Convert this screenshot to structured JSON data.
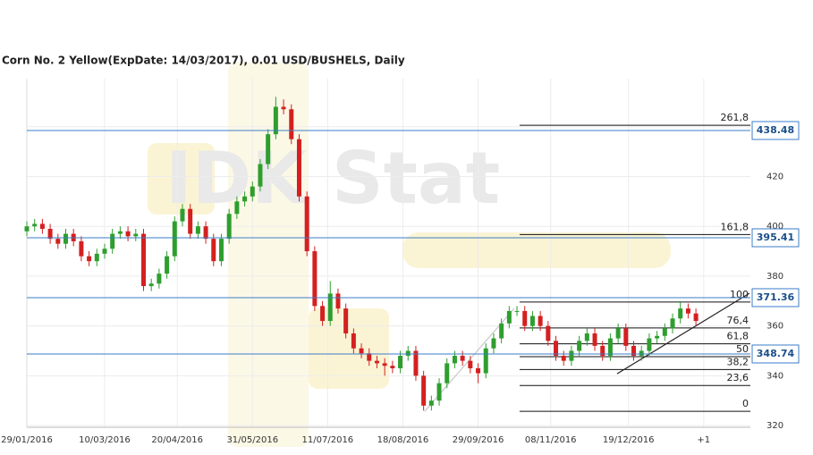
{
  "chart_data": {
    "type": "candlestick",
    "title": "Corn  No. 2 Yellow(ExpDate: 14/03/2017), 0.01 USD/BUSHELS, Daily",
    "watermark": "IDK Stat",
    "xlim": [
      0,
      279
    ],
    "xticks": [
      {
        "value": 0,
        "label": "29/01/2016"
      },
      {
        "value": 30,
        "label": "10/03/2016"
      },
      {
        "value": 58,
        "label": "20/04/2016"
      },
      {
        "value": 87,
        "label": "31/05/2016"
      },
      {
        "value": 116,
        "label": "11/07/2016"
      },
      {
        "value": 145,
        "label": "18/08/2016"
      },
      {
        "value": 174,
        "label": "29/09/2016"
      },
      {
        "value": 202,
        "label": "08/11/2016"
      },
      {
        "value": 232,
        "label": "19/12/2016"
      },
      {
        "value": 261,
        "label": "+1"
      }
    ],
    "ylim": [
      319.3,
      459.3
    ],
    "yticks": [
      320,
      340,
      360,
      380,
      400,
      420,
      440
    ],
    "grid": true,
    "up_color": "#2e9e2e",
    "down_color": "#d42020",
    "x": [
      0,
      3,
      6,
      9,
      12,
      15,
      18,
      21,
      24,
      27,
      30,
      33,
      36,
      39,
      42,
      45,
      48,
      51,
      54,
      57,
      60,
      63,
      66,
      69,
      72,
      75,
      78,
      81,
      84,
      87,
      90,
      93,
      96,
      99,
      102,
      105,
      108,
      111,
      114,
      117,
      120,
      123,
      126,
      129,
      132,
      135,
      138,
      141,
      144,
      147,
      150,
      153,
      156,
      159,
      162,
      165,
      168,
      171,
      174,
      177,
      180,
      183,
      186,
      189,
      192,
      195,
      198,
      201,
      204,
      207,
      210,
      213,
      216,
      219,
      222,
      225,
      228,
      231,
      234,
      237,
      240,
      243,
      246,
      249,
      252,
      255,
      258
    ],
    "open": [
      398,
      400,
      401,
      399,
      395,
      393,
      397,
      394,
      388,
      386,
      389,
      391,
      397,
      398,
      396,
      397,
      376,
      377,
      381,
      388,
      402,
      407,
      397,
      400,
      395,
      386,
      395,
      405,
      410,
      412,
      416,
      425,
      437,
      448,
      447,
      435,
      412,
      390,
      368,
      362,
      373,
      367,
      357,
      351,
      349,
      346,
      345,
      344,
      343,
      348,
      350,
      340,
      328,
      330,
      337,
      345,
      348,
      346,
      343,
      341,
      351,
      355,
      361,
      366,
      366,
      360,
      364,
      360,
      354,
      348,
      346,
      350,
      354,
      357,
      352,
      348,
      355,
      359,
      352,
      348,
      350,
      355,
      356,
      359,
      363,
      367,
      365
    ],
    "high": [
      402,
      403,
      403,
      401,
      397,
      399,
      399,
      396,
      390,
      391,
      393,
      399,
      400,
      400,
      399,
      399,
      379,
      383,
      390,
      404,
      409,
      409,
      402,
      402,
      397,
      397,
      407,
      412,
      414,
      418,
      427,
      439,
      452,
      451,
      449,
      437,
      414,
      392,
      370,
      378,
      375,
      369,
      359,
      353,
      351,
      348,
      347,
      346,
      350,
      352,
      352,
      342,
      332,
      339,
      347,
      350,
      350,
      348,
      345,
      353,
      357,
      363,
      368,
      368,
      368,
      366,
      366,
      362,
      356,
      350,
      352,
      356,
      359,
      359,
      354,
      357,
      361,
      361,
      354,
      352,
      357,
      358,
      361,
      365,
      370,
      369,
      367
    ],
    "low": [
      396,
      398,
      397,
      393,
      391,
      391,
      392,
      386,
      384,
      384,
      387,
      389,
      395,
      394,
      394,
      374,
      374,
      375,
      379,
      386,
      400,
      395,
      395,
      393,
      384,
      384,
      393,
      403,
      408,
      410,
      414,
      423,
      435,
      445,
      433,
      410,
      388,
      366,
      360,
      360,
      365,
      355,
      349,
      347,
      344,
      343,
      340,
      341,
      341,
      346,
      338,
      326,
      326,
      328,
      335,
      343,
      344,
      341,
      337,
      339,
      349,
      353,
      359,
      364,
      358,
      358,
      358,
      352,
      346,
      344,
      344,
      348,
      352,
      350,
      346,
      346,
      353,
      350,
      346,
      346,
      348,
      353,
      354,
      357,
      361,
      363,
      360
    ],
    "close": [
      400,
      401,
      399,
      395,
      393,
      397,
      394,
      388,
      386,
      389,
      391,
      397,
      398,
      396,
      397,
      376,
      377,
      381,
      388,
      402,
      407,
      397,
      400,
      395,
      386,
      395,
      405,
      410,
      412,
      416,
      425,
      437,
      448,
      447,
      435,
      412,
      390,
      368,
      362,
      373,
      367,
      357,
      351,
      349,
      346,
      345,
      344,
      343,
      348,
      350,
      340,
      328,
      330,
      337,
      345,
      348,
      346,
      343,
      341,
      351,
      355,
      361,
      366,
      366,
      360,
      364,
      360,
      354,
      348,
      346,
      350,
      354,
      357,
      352,
      348,
      355,
      359,
      352,
      348,
      350,
      355,
      356,
      359,
      363,
      367,
      365,
      362
    ],
    "levels": [
      438.48,
      395.41,
      371.36,
      348.74
    ],
    "level_color": "#3b7dc8",
    "fib_xlim": [
      190,
      279
    ],
    "fib_levels": [
      {
        "value": 440.6,
        "label": "261,8"
      },
      {
        "value": 396.7,
        "label": "161,8"
      },
      {
        "value": 369.6,
        "label": "100"
      },
      {
        "value": 359.2,
        "label": "76,4"
      },
      {
        "value": 352.8,
        "label": "61,8"
      },
      {
        "value": 347.65,
        "label": "50"
      },
      {
        "value": 342.5,
        "label": "38,2"
      },
      {
        "value": 336.1,
        "label": "23,6"
      },
      {
        "value": 325.7,
        "label": "0"
      }
    ],
    "trendlines": [
      {
        "x": [
          227.6,
          278.6
        ],
        "y": [
          340.8,
          373.1
        ],
        "color": "#222"
      },
      {
        "x": [
          153.4,
          187.9
        ],
        "y": [
          325.7,
          367.0
        ],
        "color": "#c8c8c8"
      }
    ]
  }
}
